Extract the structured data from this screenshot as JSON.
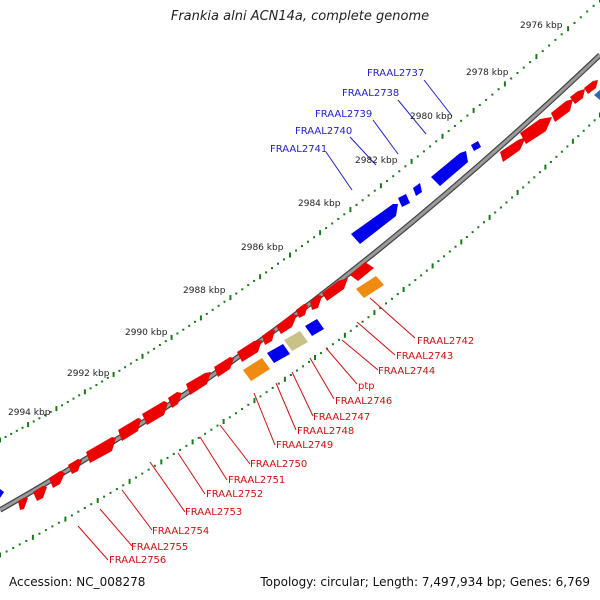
{
  "title": "Frankia alni ACN14a, complete genome",
  "footer": {
    "accession": "Accession: NC_008278",
    "topology": "Topology: circular; Length: 7,497,934 bp; Genes: 6,769"
  },
  "colors": {
    "backbone": "#8a8a8a",
    "tick": "#1a7a1a",
    "forward_gene": "#0000ee",
    "reverse_gene": "#ee0000",
    "orange_feature": "#f08a10",
    "khaki_feature": "#c8c288",
    "forward_label": "#2222cc",
    "reverse_label": "#cc1111"
  },
  "ticks": [
    "2976 kbp",
    "2978 kbp",
    "2980 kbp",
    "2982 kbp",
    "2984 kbp",
    "2986 kbp",
    "2988 kbp",
    "2990 kbp",
    "2992 kbp",
    "2994 kbp"
  ],
  "forward_labels": [
    "FRAAL2737",
    "FRAAL2738",
    "FRAAL2739",
    "FRAAL2740",
    "FRAAL2741"
  ],
  "reverse_labels": [
    "FRAAL2742",
    "FRAAL2743",
    "FRAAL2744",
    "ptp",
    "FRAAL2746",
    "FRAAL2747",
    "FRAAL2748",
    "FRAAL2749",
    "FRAAL2750",
    "FRAAL2751",
    "FRAAL2752",
    "FRAAL2753",
    "FRAAL2754",
    "FRAAL2755",
    "FRAAL2756"
  ]
}
